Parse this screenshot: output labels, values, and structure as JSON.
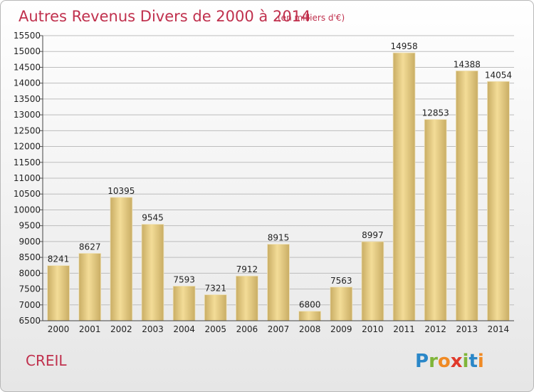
{
  "chart_data": {
    "type": "bar",
    "title": "Autres Revenus Divers de 2000 à 2014",
    "subtitle": "(en milliers d'€)",
    "categories": [
      "2000",
      "2001",
      "2002",
      "2003",
      "2004",
      "2005",
      "2006",
      "2007",
      "2008",
      "2009",
      "2010",
      "2011",
      "2012",
      "2013",
      "2014"
    ],
    "values": [
      8241,
      8627,
      10395,
      9545,
      7593,
      7321,
      7912,
      8915,
      6800,
      7563,
      8997,
      14958,
      12853,
      14388,
      14054
    ],
    "ylim": [
      6500,
      15500
    ],
    "yticks": [
      6500,
      7000,
      7500,
      8000,
      8500,
      9000,
      9500,
      10000,
      10500,
      11000,
      11500,
      12000,
      12500,
      13000,
      13500,
      14000,
      14500,
      15000,
      15500
    ],
    "grid": true,
    "bar_color": "#dcc27e"
  },
  "footer": {
    "location": "CREIL",
    "brand_letters": [
      "P",
      "r",
      "o",
      "x",
      "i",
      "t",
      "i"
    ],
    "brand_colors": [
      "#2a87c8",
      "#7fb539",
      "#f08a24",
      "#e0392b",
      "#7fb539",
      "#2a87c8",
      "#f08a24"
    ]
  }
}
